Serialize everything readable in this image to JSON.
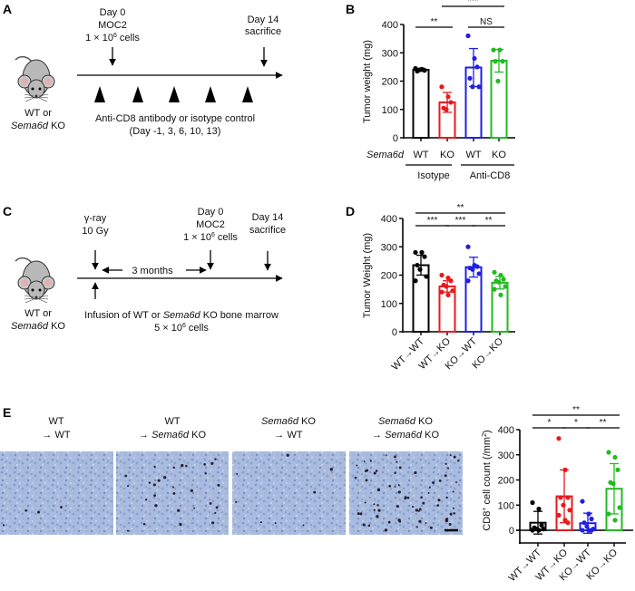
{
  "panel_labels": {
    "a": "A",
    "b": "B",
    "c": "C",
    "d": "D",
    "e": "E"
  },
  "panel_a": {
    "mouse_label_line1": "WT or",
    "mouse_label_gene": "Sema6d",
    "mouse_label_suffix": " KO",
    "day0_line1": "Day 0",
    "day0_line2": "MOC2",
    "day0_cells_prefix": "1 × 10",
    "day0_cells_exp": "6",
    "day0_cells_suffix": " cells",
    "day14_line1": "Day 14",
    "day14_line2": "sacrifice",
    "treatment_line1": "Anti-CD8 antibody or isotype control",
    "treatment_line2": "(Day -1, 3, 6, 10, 13)"
  },
  "panel_c": {
    "mouse_label_line1": "WT or",
    "mouse_label_gene": "Sema6d",
    "mouse_label_suffix": " KO",
    "irradiation_line1": "γ-ray",
    "irradiation_line2": "10 Gy",
    "interval_label": "3 months",
    "day0_line1": "Day 0",
    "day0_line2": "MOC2",
    "day0_cells_prefix": "1 × 10",
    "day0_cells_exp": "6",
    "day0_cells_suffix": " cells",
    "day14_line1": "Day 14",
    "day14_line2": "sacrifice",
    "infusion_prefix": "Infusion of WT or ",
    "infusion_gene": "Sema6d",
    "infusion_suffix": " KO bone marrow",
    "infusion_cells_prefix": "5 × 10",
    "infusion_cells_exp": "6",
    "infusion_cells_suffix": " cells"
  },
  "panel_e_images": [
    {
      "line1_gene": "",
      "line1_rest": "WT",
      "line2_prefix": "→ ",
      "line2_gene": "",
      "line2_rest": "WT"
    },
    {
      "line1_gene": "",
      "line1_rest": "WT",
      "line2_prefix": "→ ",
      "line2_gene": "Sema6d",
      "line2_rest": " KO"
    },
    {
      "line1_gene": "Sema6d",
      "line1_rest": " KO",
      "line2_prefix": "→ ",
      "line2_gene": "",
      "line2_rest": "WT"
    },
    {
      "line1_gene": "Sema6d",
      "line1_rest": " KO",
      "line2_prefix": "→ ",
      "line2_gene": "Sema6d",
      "line2_rest": " KO"
    }
  ],
  "chart_data": [
    {
      "panel": "B",
      "type": "bar",
      "ylabel": "Tumor weight (mg)",
      "ylim": [
        0,
        400
      ],
      "yticks": [
        "0",
        "100",
        "200",
        "300",
        "400"
      ],
      "row_label": "Sema6d",
      "categories": [
        "WT",
        "KO",
        "WT",
        "KO"
      ],
      "groups": [
        {
          "label": "Isotype",
          "members": [
            0,
            1
          ]
        },
        {
          "label": "Anti-CD8",
          "members": [
            2,
            3
          ]
        }
      ],
      "colors": [
        "#000000",
        "#e8191d",
        "#1f1fe6",
        "#22bb22"
      ],
      "means": [
        240,
        125,
        248,
        272
      ],
      "sd": [
        5,
        35,
        67,
        40
      ],
      "points": [
        [
          245,
          242,
          238,
          235,
          240
        ],
        [
          180,
          145,
          125,
          105,
          100
        ],
        [
          360,
          280,
          250,
          210,
          180,
          180
        ],
        [
          310,
          310,
          270,
          270,
          200
        ]
      ],
      "significance": [
        {
          "from": 0,
          "to": 1,
          "label": "**"
        },
        {
          "from": 1,
          "to": 3,
          "label": "***"
        },
        {
          "from": 2,
          "to": 3,
          "label": "NS"
        }
      ],
      "grid": false
    },
    {
      "panel": "D",
      "type": "bar",
      "ylabel": "Tumor Weight (mg)",
      "ylim": [
        0,
        400
      ],
      "yticks": [
        "0",
        "100",
        "200",
        "300",
        "400"
      ],
      "categories": [
        "WT→WT",
        "WT→KO",
        "KO→WT",
        "KO→KO"
      ],
      "colors": [
        "#000000",
        "#e8191d",
        "#1f1fe6",
        "#22bb22"
      ],
      "means": [
        235,
        160,
        228,
        173
      ],
      "sd": [
        35,
        20,
        35,
        22
      ],
      "points": [
        [
          280,
          280,
          265,
          235,
          220,
          195,
          180
        ],
        [
          200,
          190,
          180,
          165,
          160,
          145,
          140,
          130
        ],
        [
          300,
          235,
          230,
          225,
          220,
          205,
          180
        ],
        [
          210,
          200,
          185,
          180,
          175,
          160,
          150,
          130
        ]
      ],
      "significance": [
        {
          "from": 0,
          "to": 3,
          "label": "**"
        },
        {
          "from": 0,
          "to": 1,
          "label": "***"
        },
        {
          "from": 1,
          "to": 2,
          "label": "***"
        },
        {
          "from": 2,
          "to": 3,
          "label": "**"
        }
      ],
      "grid": false
    },
    {
      "panel": "E",
      "type": "bar",
      "ylabel_prefix": "CD8",
      "ylabel_sup": "+",
      "ylabel_mid": " cell count (/mm",
      "ylabel_sup2": "2",
      "ylabel_suffix": ")",
      "ylim": [
        -50,
        400
      ],
      "yticks": [
        "0",
        "100",
        "200",
        "300",
        "400"
      ],
      "categories": [
        "WT→WT",
        "WT→KO",
        "KO→WT",
        "KO→KO"
      ],
      "colors": [
        "#000000",
        "#e8191d",
        "#1f1fe6",
        "#22bb22"
      ],
      "means": [
        30,
        135,
        28,
        165
      ],
      "sd": [
        45,
        105,
        40,
        100
      ],
      "points": [
        [
          110,
          85,
          20,
          10,
          5,
          5,
          0,
          0
        ],
        [
          365,
          240,
          130,
          130,
          100,
          80,
          60,
          40,
          30
        ],
        [
          115,
          65,
          45,
          30,
          15,
          5,
          0,
          0,
          0
        ],
        [
          310,
          290,
          240,
          190,
          185,
          90,
          65,
          40
        ]
      ],
      "significance": [
        {
          "from": 0,
          "to": 3,
          "label": "**"
        },
        {
          "from": 0,
          "to": 1,
          "label": "*"
        },
        {
          "from": 1,
          "to": 2,
          "label": "*"
        },
        {
          "from": 2,
          "to": 3,
          "label": "**"
        }
      ],
      "grid": false
    }
  ]
}
